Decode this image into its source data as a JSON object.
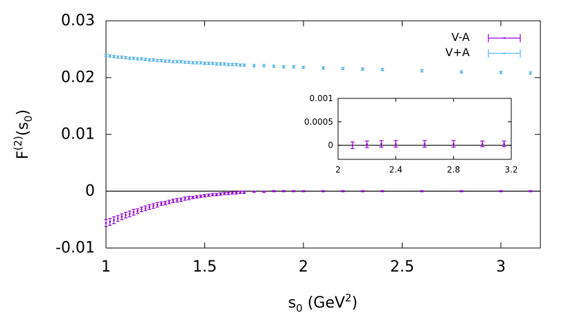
{
  "chart_data": [
    {
      "type": "scatter",
      "title": "",
      "xlabel": {
        "base": "s",
        "sub": "0",
        "rest": " (GeV",
        "sup": "2",
        "close": ")"
      },
      "ylabel": {
        "base": "F",
        "sup": "(2)",
        "paren_open": "(s",
        "sub": "0",
        "paren_close": ")"
      },
      "xlim": [
        1,
        3.2
      ],
      "ylim": [
        -0.01,
        0.03
      ],
      "x_ticks": [
        1,
        1.5,
        2,
        2.5,
        3
      ],
      "x_tick_labels": [
        "1",
        "1.5",
        "2",
        "2.5",
        "3"
      ],
      "y_ticks": [
        -0.01,
        0,
        0.01,
        0.02,
        0.03
      ],
      "y_tick_labels": [
        "-0.01",
        "0",
        "0.01",
        "0.02",
        "0.03"
      ],
      "zero_line": true,
      "grid": false,
      "legend_position": "top-right",
      "series": [
        {
          "name": "V-A",
          "color": "#9400d3",
          "x": [
            1.0,
            1.02,
            1.04,
            1.06,
            1.08,
            1.1,
            1.12,
            1.14,
            1.16,
            1.18,
            1.2,
            1.22,
            1.24,
            1.26,
            1.28,
            1.3,
            1.32,
            1.34,
            1.36,
            1.38,
            1.4,
            1.42,
            1.44,
            1.46,
            1.48,
            1.5,
            1.52,
            1.54,
            1.56,
            1.58,
            1.6,
            1.62,
            1.64,
            1.66,
            1.68,
            1.7,
            1.75,
            1.8,
            1.85,
            1.9,
            1.95,
            2.0,
            2.1,
            2.2,
            2.3,
            2.4,
            2.6,
            2.8,
            3.0,
            3.15
          ],
          "y": [
            -0.0056,
            -0.0054,
            -0.0051,
            -0.0048,
            -0.0045,
            -0.0042,
            -0.004,
            -0.0037,
            -0.0035,
            -0.0032,
            -0.003,
            -0.0028,
            -0.0026,
            -0.0024,
            -0.0022,
            -0.0021,
            -0.0019,
            -0.0017,
            -0.0016,
            -0.0015,
            -0.0013,
            -0.0012,
            -0.0011,
            -0.001,
            -0.0009,
            -0.0008,
            -0.0007,
            -0.0006,
            -0.0006,
            -0.0005,
            -0.0004,
            -0.0004,
            -0.0003,
            -0.0003,
            -0.0002,
            -0.0002,
            -0.0001,
            -0.0001,
            0.0,
            0.0,
            0.0,
            0.0,
            0.0,
            0.0,
            0.0,
            0.0,
            0.0,
            0.0,
            0.0,
            0.0
          ],
          "yerr": [
            0.0006,
            0.0006,
            0.0006,
            0.0005,
            0.0005,
            0.0005,
            0.0005,
            0.0005,
            0.0004,
            0.0004,
            0.0004,
            0.0004,
            0.0004,
            0.0004,
            0.0003,
            0.0003,
            0.0003,
            0.0003,
            0.0003,
            0.0003,
            0.0003,
            0.0003,
            0.0002,
            0.0002,
            0.0002,
            0.0002,
            0.0002,
            0.0002,
            0.0002,
            0.0002,
            0.0002,
            0.0002,
            0.0002,
            0.0002,
            0.0002,
            0.0002,
            0.0001,
            0.0001,
            0.0001,
            0.0001,
            0.0001,
            0.0001,
            0.0001,
            0.0001,
            0.0001,
            0.0001,
            0.0001,
            0.0001,
            0.0001,
            0.0001
          ]
        },
        {
          "name": "V+A",
          "color": "#56b4e9",
          "x": [
            1.0,
            1.02,
            1.04,
            1.06,
            1.08,
            1.1,
            1.12,
            1.14,
            1.16,
            1.18,
            1.2,
            1.22,
            1.24,
            1.26,
            1.28,
            1.3,
            1.32,
            1.34,
            1.36,
            1.38,
            1.4,
            1.42,
            1.44,
            1.46,
            1.48,
            1.5,
            1.52,
            1.54,
            1.56,
            1.58,
            1.6,
            1.62,
            1.64,
            1.66,
            1.68,
            1.7,
            1.75,
            1.8,
            1.85,
            1.9,
            1.95,
            2.0,
            2.1,
            2.2,
            2.3,
            2.4,
            2.6,
            2.8,
            3.0,
            3.15
          ],
          "y": [
            0.0239,
            0.0238,
            0.0237,
            0.0236,
            0.0236,
            0.0235,
            0.0234,
            0.0234,
            0.0233,
            0.0233,
            0.0232,
            0.0231,
            0.0231,
            0.023,
            0.023,
            0.0229,
            0.0229,
            0.0228,
            0.0228,
            0.0228,
            0.0227,
            0.0227,
            0.0226,
            0.0226,
            0.0226,
            0.0225,
            0.0225,
            0.0225,
            0.0224,
            0.0224,
            0.0224,
            0.0223,
            0.0223,
            0.0223,
            0.0222,
            0.0222,
            0.0221,
            0.0221,
            0.022,
            0.0219,
            0.0219,
            0.0218,
            0.0217,
            0.0216,
            0.0215,
            0.0214,
            0.0212,
            0.021,
            0.0209,
            0.0208
          ],
          "yerr": [
            0.0002,
            0.0002,
            0.0002,
            0.0002,
            0.0002,
            0.0002,
            0.0002,
            0.0002,
            0.0002,
            0.0002,
            0.0002,
            0.0002,
            0.0002,
            0.0002,
            0.0002,
            0.0002,
            0.0002,
            0.0002,
            0.0002,
            0.0002,
            0.0002,
            0.0002,
            0.0002,
            0.0002,
            0.0002,
            0.0002,
            0.0002,
            0.0002,
            0.0002,
            0.0002,
            0.0002,
            0.0002,
            0.0002,
            0.0002,
            0.0002,
            0.0002,
            0.0002,
            0.0002,
            0.0002,
            0.0002,
            0.0002,
            0.0002,
            0.0002,
            0.0002,
            0.0002,
            0.0002,
            0.0002,
            0.0002,
            0.0002,
            0.0002
          ]
        }
      ]
    },
    {
      "type": "scatter",
      "title": "",
      "inset": true,
      "xlim": [
        2,
        3.2
      ],
      "ylim": [
        -0.0003,
        0.001
      ],
      "x_ticks": [
        2,
        2.4,
        2.8,
        3.2
      ],
      "x_tick_labels": [
        "2",
        "2.4",
        "2.8",
        "3.2"
      ],
      "y_ticks": [
        0,
        0.0005,
        0.001
      ],
      "y_tick_labels": [
        "0",
        "0.0005",
        "0.001"
      ],
      "zero_line": true,
      "series": [
        {
          "name": "V-A",
          "color": "#9400d3",
          "x": [
            2.1,
            2.2,
            2.3,
            2.4,
            2.6,
            2.8,
            3.0,
            3.15
          ],
          "y": [
            0.0,
            2e-05,
            3e-05,
            3e-05,
            3e-05,
            3e-05,
            3e-05,
            3e-05
          ],
          "yerr": [
            7e-05,
            7e-05,
            7e-05,
            7e-05,
            7e-05,
            7e-05,
            6e-05,
            6e-05
          ]
        }
      ]
    }
  ]
}
